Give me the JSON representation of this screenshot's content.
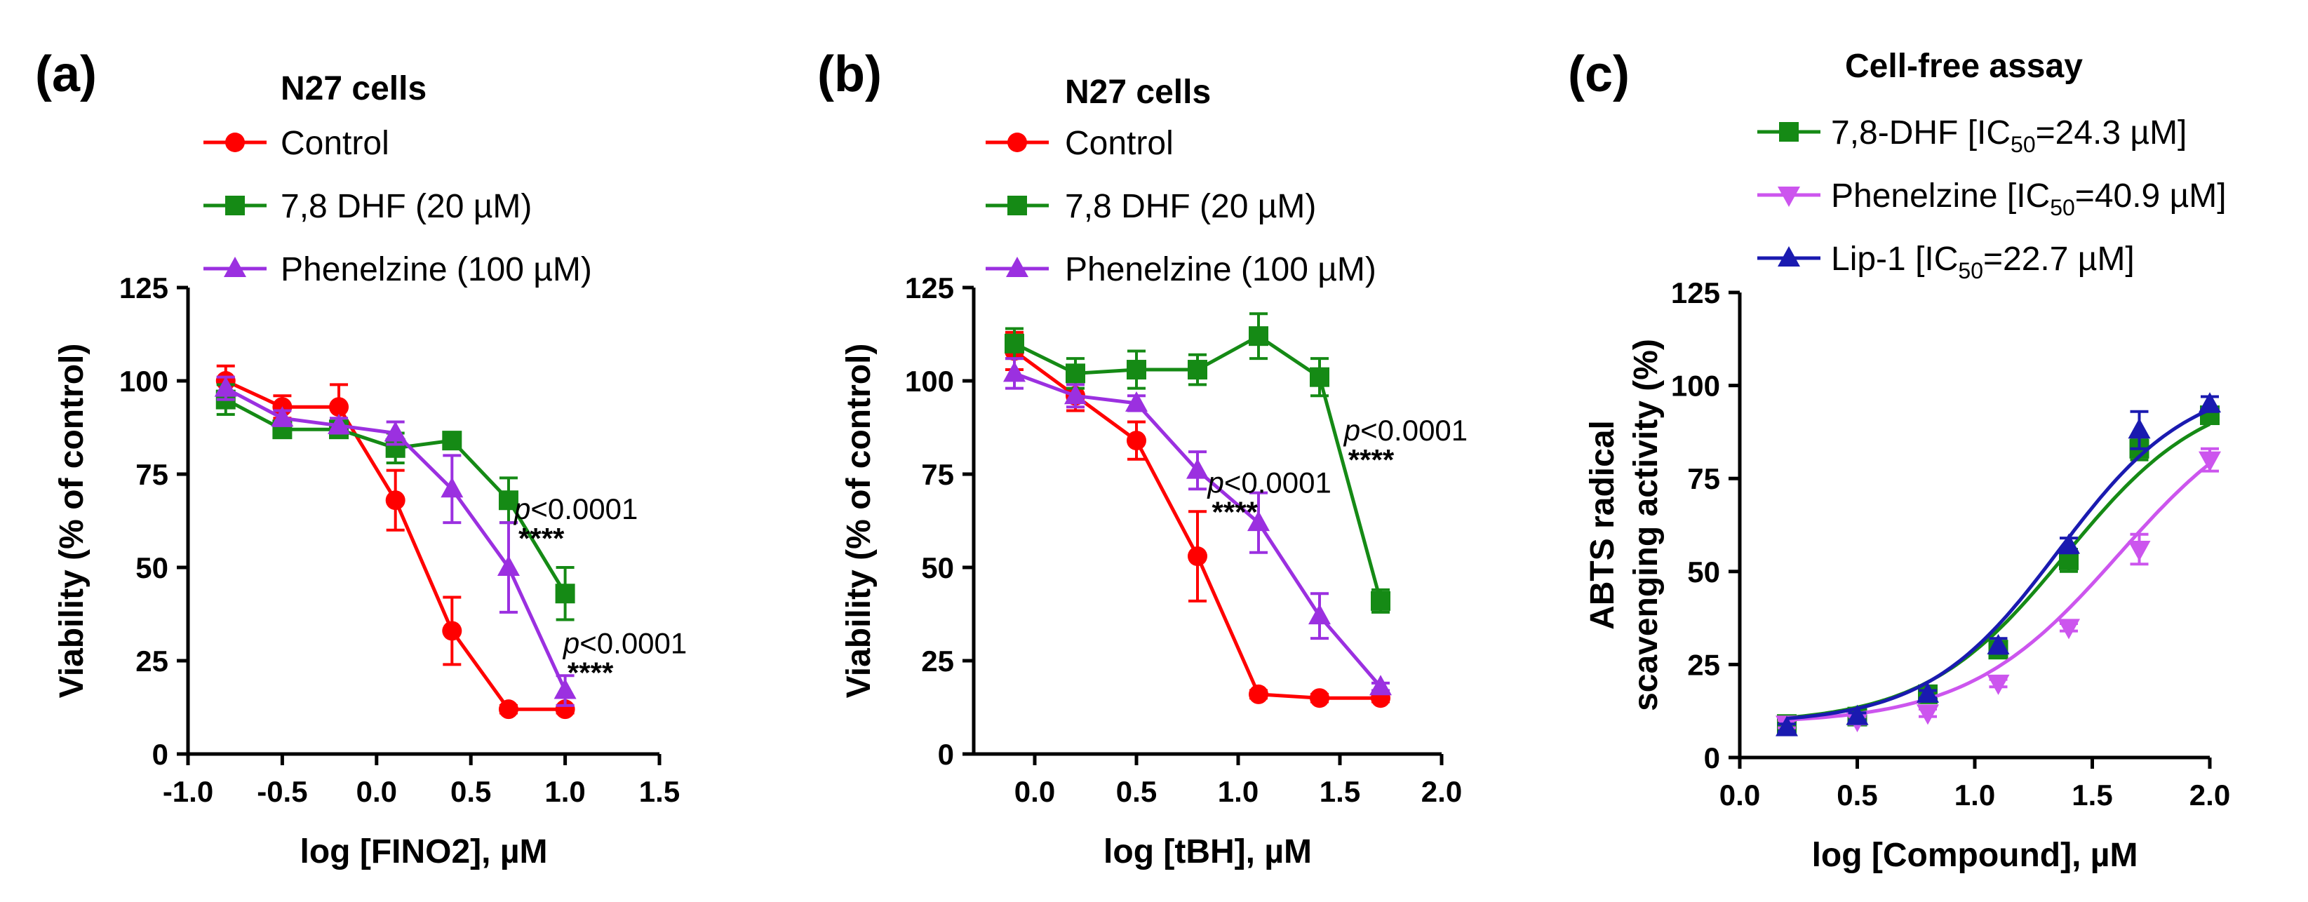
{
  "chart_data": [
    {
      "panel": "(a)",
      "type": "line",
      "title": "N27 cells",
      "xlabel": "log [FINO2], µM",
      "ylabel": "Viability (% of control)",
      "xlim": [
        -1.0,
        1.5
      ],
      "ylim": [
        0,
        125
      ],
      "xticks": [
        -1.0,
        -0.5,
        0.0,
        0.5,
        1.0,
        1.5
      ],
      "xtick_labels": [
        "-1.0",
        "-0.5",
        "0.0",
        "0.5",
        "1.0",
        "1.5"
      ],
      "yticks": [
        0,
        25,
        50,
        75,
        100,
        125
      ],
      "ytick_labels": [
        "0",
        "25",
        "50",
        "75",
        "100",
        "125"
      ],
      "series": [
        {
          "name": "Control",
          "color": "#ff0000",
          "marker": "circle",
          "x": [
            -0.8,
            -0.5,
            -0.2,
            0.1,
            0.4,
            0.7,
            1.0
          ],
          "y": [
            100,
            93,
            93,
            68,
            33,
            12,
            12
          ],
          "err": [
            4,
            3,
            6,
            8,
            9,
            1,
            1
          ]
        },
        {
          "name": "7,8 DHF (20 µM)",
          "color": "#158a15",
          "marker": "square",
          "x": [
            -0.8,
            -0.5,
            -0.2,
            0.1,
            0.4,
            0.7,
            1.0
          ],
          "y": [
            95,
            87,
            87,
            82,
            84,
            68,
            43
          ],
          "err": [
            4,
            2,
            2,
            4,
            2,
            6,
            7
          ]
        },
        {
          "name": "Phenelzine (100 µM)",
          "color": "#9b30e0",
          "marker": "triangle",
          "x": [
            -0.8,
            -0.5,
            -0.2,
            0.1,
            0.4,
            0.7,
            1.0
          ],
          "y": [
            98,
            90,
            88,
            86,
            71,
            50,
            17
          ],
          "err": [
            3,
            2,
            2,
            3,
            9,
            12,
            4
          ]
        }
      ],
      "annotations": [
        {
          "p": "p",
          "text": "<0.0001",
          "stars": "****",
          "x": 0.73,
          "y": 63
        },
        {
          "p": "p",
          "text": "<0.0001",
          "stars": "****",
          "x": 0.99,
          "y": 27
        }
      ]
    },
    {
      "panel": "(b)",
      "type": "line",
      "title": "N27 cells",
      "xlabel": "log [tBH], µM",
      "ylabel": "Viability (% of control)",
      "xlim": [
        -0.3,
        2.0
      ],
      "ylim": [
        0,
        125
      ],
      "xticks": [
        0.0,
        0.5,
        1.0,
        1.5,
        2.0
      ],
      "xtick_labels": [
        "0.0",
        "0.5",
        "1.0",
        "1.5",
        "2.0"
      ],
      "yticks": [
        0,
        25,
        50,
        75,
        100,
        125
      ],
      "ytick_labels": [
        "0",
        "25",
        "50",
        "75",
        "100",
        "125"
      ],
      "series": [
        {
          "name": "Control",
          "color": "#ff0000",
          "marker": "circle",
          "x": [
            -0.1,
            0.2,
            0.5,
            0.8,
            1.1,
            1.4,
            1.7
          ],
          "y": [
            108,
            96,
            84,
            53,
            16,
            15,
            15
          ],
          "err": [
            5,
            4,
            5,
            12,
            1,
            1,
            1
          ]
        },
        {
          "name": "7,8 DHF (20 µM)",
          "color": "#158a15",
          "marker": "square",
          "x": [
            -0.1,
            0.2,
            0.5,
            0.8,
            1.1,
            1.4,
            1.7
          ],
          "y": [
            110,
            102,
            103,
            103,
            112,
            101,
            41
          ],
          "err": [
            4,
            4,
            5,
            4,
            6,
            5,
            3
          ]
        },
        {
          "name": "Phenelzine (100 µM)",
          "color": "#9b30e0",
          "marker": "triangle",
          "x": [
            -0.1,
            0.2,
            0.5,
            0.8,
            1.1,
            1.4,
            1.7
          ],
          "y": [
            102,
            96,
            94,
            76,
            62,
            37,
            18
          ],
          "err": [
            4,
            3,
            2,
            5,
            8,
            6,
            1
          ]
        }
      ],
      "annotations": [
        {
          "p": "p",
          "text": "<0.0001",
          "stars": "****",
          "x": 1.52,
          "y": 84
        },
        {
          "p": "p",
          "text": "<0.0001",
          "stars": "****",
          "x": 0.85,
          "y": 70
        }
      ]
    },
    {
      "panel": "(c)",
      "type": "scatter",
      "title": "Cell-free assay",
      "xlabel": "log [Compound], µM",
      "ylabel_line1": "ABTS radical",
      "ylabel_line2": "scavenging activity  (%)",
      "xlim": [
        0.0,
        2.0
      ],
      "ylim": [
        0,
        125
      ],
      "xticks": [
        0.0,
        0.5,
        1.0,
        1.5,
        2.0
      ],
      "xtick_labels": [
        "0.0",
        "0.5",
        "1.0",
        "1.5",
        "2.0"
      ],
      "yticks": [
        0,
        25,
        50,
        75,
        100,
        125
      ],
      "ytick_labels": [
        "0",
        "25",
        "50",
        "75",
        "100",
        "125"
      ],
      "fit": "sigmoidal",
      "series": [
        {
          "name": "7,8-DHF",
          "ic50": "24.3 µM",
          "color": "#158a15",
          "marker": "square",
          "x": [
            0.2,
            0.5,
            0.8,
            1.1,
            1.4,
            1.7,
            2.0
          ],
          "y": [
            9,
            11,
            17,
            29,
            53,
            83,
            92
          ],
          "err": [
            1,
            1,
            2,
            2,
            3,
            3,
            2
          ],
          "fit_curve": {
            "bottom": 9,
            "top": 100,
            "logIC50": 1.386,
            "hill": 1.45
          }
        },
        {
          "name": "Phenelzine",
          "ic50": "40.9 µM",
          "color": "#cc55ee",
          "marker": "triangle-down",
          "x": [
            0.2,
            0.5,
            0.8,
            1.1,
            1.4,
            1.7,
            2.0
          ],
          "y": [
            9,
            10,
            12,
            20,
            35,
            56,
            80
          ],
          "err": [
            1,
            1,
            1,
            1,
            1,
            4,
            3
          ],
          "fit_curve": {
            "bottom": 9,
            "top": 100,
            "logIC50": 1.612,
            "hill": 1.35
          }
        },
        {
          "name": "Lip-1",
          "ic50": "22.7 µM",
          "color": "#1a1ab0",
          "marker": "triangle",
          "x": [
            0.2,
            0.5,
            0.8,
            1.1,
            1.4,
            1.7,
            2.0
          ],
          "y": [
            8,
            11,
            17,
            30,
            57,
            88,
            95
          ],
          "err": [
            1,
            1,
            1,
            2,
            2,
            5,
            2
          ],
          "fit_curve": {
            "bottom": 9,
            "top": 102,
            "logIC50": 1.356,
            "hill": 1.55
          }
        }
      ]
    }
  ],
  "legend_c": {
    "ic50_prefix": "[IC",
    "ic50_sub": "50",
    "ic50_eq": "="
  }
}
